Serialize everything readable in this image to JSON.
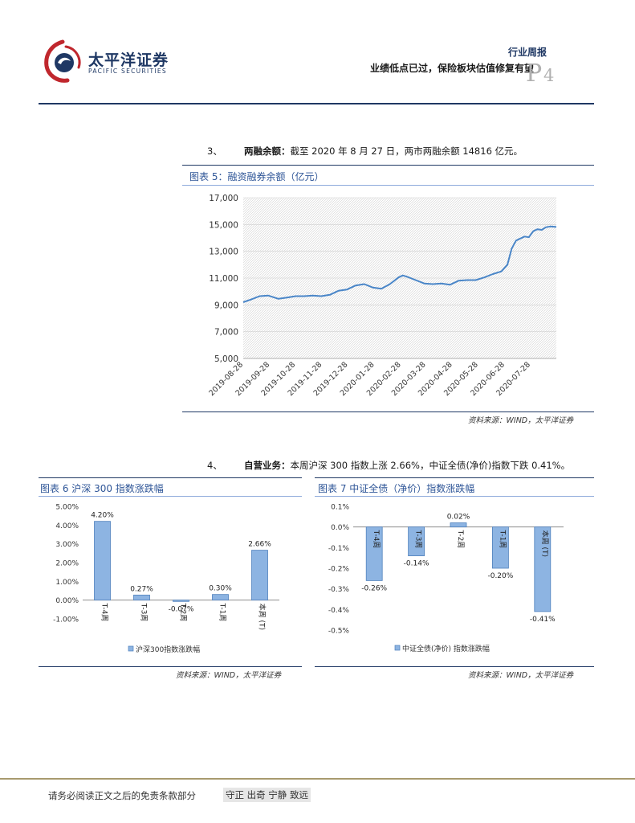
{
  "header": {
    "logo_cn": "太平洋证券",
    "logo_en": "PACIFIC SECURITIES",
    "report_type": "行业周报",
    "report_title": "业绩低点已过，保险板块估值修复有望",
    "page_letter": "P",
    "page_number": "4"
  },
  "section3": {
    "number": "3、",
    "heading": "两融余额：",
    "text": "截至 2020 年 8 月 27 日，两市两融余额 14816 亿元。"
  },
  "figure5": {
    "title": "图表 5：融资融券余额（亿元）",
    "source": "资料来源：WIND，太平洋证券"
  },
  "section4": {
    "number": "4、",
    "heading": "自营业务：",
    "text": "本周沪深 300 指数上涨 2.66%，中证全债(净价)指数下跌 0.41%。"
  },
  "figure6": {
    "title": "图表 6 沪深 300 指数涨跌幅",
    "source": "资料来源：WIND，太平洋证券"
  },
  "figure7": {
    "title": "图表 7 中证全债（净价）指数涨跌幅",
    "source": "资料来源：WIND，太平洋证券"
  },
  "footer": {
    "note": "请务必阅读正文之后的免责条款部分",
    "motto": "守正 出奇 宁静 致远"
  },
  "colors": {
    "navy": "#1f3864",
    "bar_fill": "#8db4e2",
    "bar_stroke": "#4f81bd",
    "line": "#4a86c8"
  },
  "chart_data": [
    {
      "type": "line",
      "title": "融资融券余额（亿元）",
      "ylim": [
        5000,
        17000
      ],
      "yticks": [
        "5,000",
        "7,000",
        "9,000",
        "11,000",
        "13,000",
        "15,000",
        "17,000"
      ],
      "xticks": [
        "2019-08-28",
        "2019-09-28",
        "2019-10-28",
        "2019-11-28",
        "2019-12-28",
        "2020-01-28",
        "2020-02-28",
        "2020-03-28",
        "2020-04-28",
        "2020-05-28",
        "2020-06-28",
        "2020-07-28"
      ],
      "x_range": [
        "2019-08-28",
        "2020-08-27"
      ],
      "grid": true,
      "series": [
        {
          "x": [
            "2019-08-28",
            "2019-09-06",
            "2019-09-16",
            "2019-09-26",
            "2019-10-08",
            "2019-10-18",
            "2019-10-28",
            "2019-11-07",
            "2019-11-17",
            "2019-11-27",
            "2019-12-07",
            "2019-12-17",
            "2019-12-27",
            "2020-01-06",
            "2020-01-16",
            "2020-01-26",
            "2020-02-05",
            "2020-02-15",
            "2020-02-25",
            "2020-03-01",
            "2020-03-06",
            "2020-03-16",
            "2020-03-26",
            "2020-04-05",
            "2020-04-15",
            "2020-04-25",
            "2020-05-05",
            "2020-05-15",
            "2020-05-25",
            "2020-06-04",
            "2020-06-14",
            "2020-06-24",
            "2020-07-01",
            "2020-07-06",
            "2020-07-11",
            "2020-07-16",
            "2020-07-21",
            "2020-07-26",
            "2020-07-31",
            "2020-08-05",
            "2020-08-10",
            "2020-08-15",
            "2020-08-20",
            "2020-08-27"
          ],
          "y": [
            9200,
            9400,
            9650,
            9700,
            9450,
            9550,
            9650,
            9650,
            9700,
            9650,
            9750,
            10050,
            10150,
            10450,
            10550,
            10300,
            10200,
            10550,
            11050,
            11200,
            11100,
            10850,
            10600,
            10550,
            10600,
            10500,
            10800,
            10850,
            10850,
            11050,
            11300,
            11500,
            12000,
            13200,
            13800,
            13950,
            14100,
            14050,
            14500,
            14650,
            14600,
            14800,
            14850,
            14816
          ]
        }
      ]
    },
    {
      "type": "bar",
      "title": "沪深 300 指数涨跌幅",
      "categories": [
        "T-4周",
        "T-3周",
        "T-2周",
        "T-1周",
        "本周 (T)"
      ],
      "series": [
        {
          "name": "沪深300指数涨跌幅",
          "values": [
            4.2,
            0.27,
            -0.07,
            0.3,
            2.66
          ]
        }
      ],
      "data_labels": [
        "4.20%",
        "0.27%",
        "-0.07%",
        "0.30%",
        "2.66%"
      ],
      "ylim": [
        -1.0,
        5.0
      ],
      "yticks": [
        "5.00%",
        "4.00%",
        "3.00%",
        "2.00%",
        "1.00%",
        "0.00%",
        "-1.00%"
      ],
      "legend": "bottom"
    },
    {
      "type": "bar",
      "title": "中证全债（净价）指数涨跌幅",
      "categories": [
        "T-4周",
        "T-3周",
        "T-2周",
        "T-1周",
        "本周 (T)"
      ],
      "series": [
        {
          "name": "中证全债(净价) 指数涨跌幅",
          "values": [
            -0.26,
            -0.14,
            0.02,
            -0.2,
            -0.41
          ]
        }
      ],
      "data_labels": [
        "-0.26%",
        "-0.14%",
        "0.02%",
        "-0.20%",
        "-0.41%"
      ],
      "ylim": [
        -0.5,
        0.1
      ],
      "yticks": [
        "0.1%",
        "0.0%",
        "-0.1%",
        "-0.2%",
        "-0.3%",
        "-0.4%",
        "-0.5%"
      ],
      "legend": "bottom"
    }
  ]
}
